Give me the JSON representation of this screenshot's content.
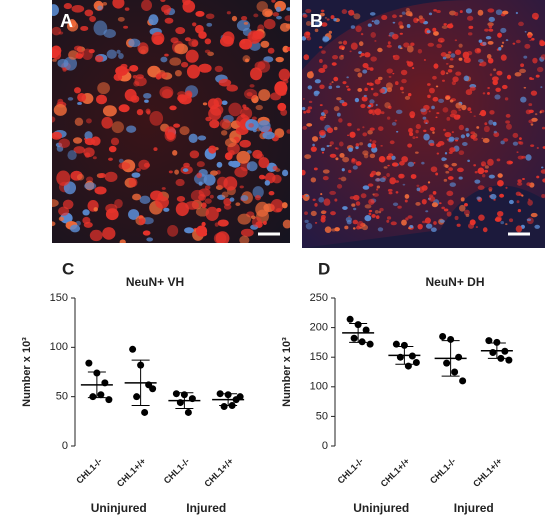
{
  "image_panels": [
    {
      "label": "A"
    },
    {
      "label": "B"
    }
  ],
  "chart_data": [
    {
      "type": "dot",
      "label": "C",
      "title": "NeuN+ VH",
      "y_label": "Number x 10³",
      "categories": [
        "CHL1-/-",
        "CHL1+/+",
        "CHL1-/-",
        "CHL1+/+"
      ],
      "groups": [
        "Uninjured",
        "Injured"
      ],
      "values": [
        [
          84,
          74,
          64,
          50,
          52,
          47
        ],
        [
          98,
          82,
          62,
          50,
          34,
          58
        ],
        [
          53,
          52,
          48,
          44,
          34
        ],
        [
          53,
          52,
          47,
          40,
          41,
          50
        ]
      ],
      "means": [
        62,
        64,
        46,
        47
      ],
      "sds": [
        13,
        23,
        8,
        6
      ],
      "color": "#000000",
      "ylim": [
        0,
        150
      ],
      "yticks": [
        0,
        50,
        100,
        150
      ]
    },
    {
      "type": "dot",
      "label": "D",
      "title": "NeuN+ DH",
      "y_label": "Number x 10³",
      "categories": [
        "CHL1-/-",
        "CHL1+/+",
        "CHL1-/-",
        "CHL1+/+"
      ],
      "groups": [
        "Uninjured",
        "Injured"
      ],
      "values": [
        [
          214,
          205,
          196,
          182,
          176,
          172
        ],
        [
          172,
          170,
          152,
          150,
          135,
          141
        ],
        [
          185,
          180,
          150,
          140,
          125,
          110
        ],
        [
          178,
          175,
          160,
          158,
          148,
          145
        ]
      ],
      "means": [
        191,
        153,
        148,
        161
      ],
      "sds": [
        16,
        15,
        30,
        13
      ],
      "color": "#000000",
      "ylim": [
        0,
        250
      ],
      "yticks": [
        0,
        50,
        100,
        150,
        200,
        250
      ]
    }
  ]
}
